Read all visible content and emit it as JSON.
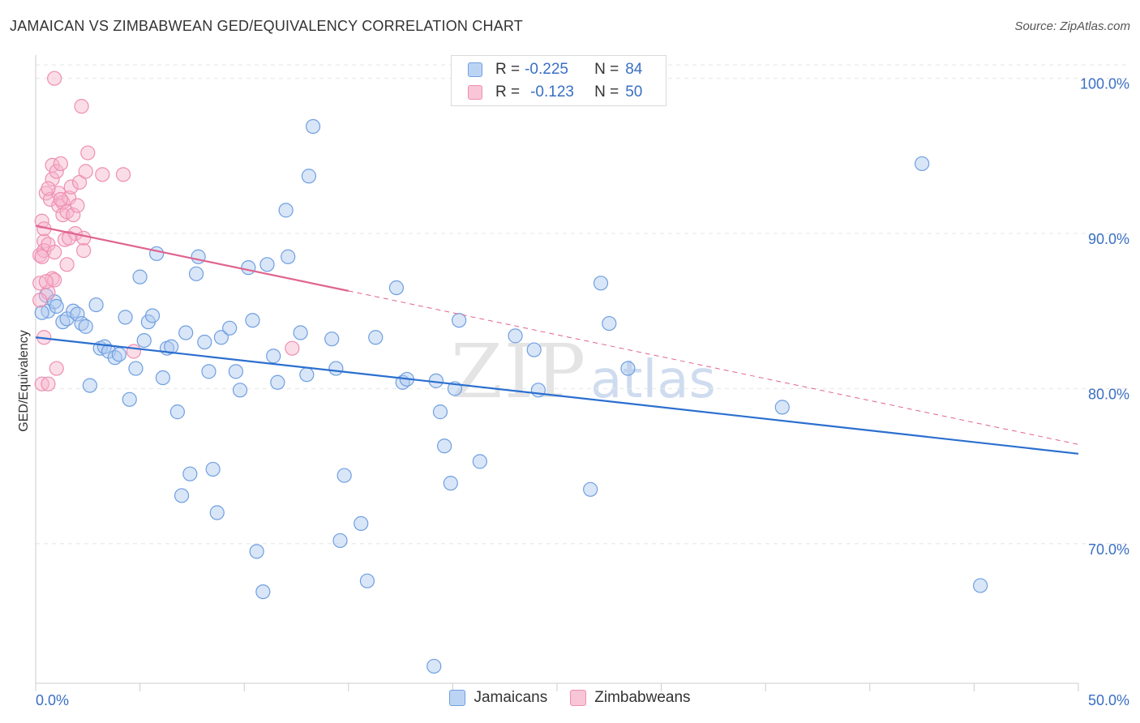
{
  "header": {
    "title": "JAMAICAN VS ZIMBABWEAN GED/EQUIVALENCY CORRELATION CHART",
    "source": "Source: ZipAtlas.com"
  },
  "watermark": {
    "zip": "ZIP",
    "atlas": "atlas"
  },
  "legend": {
    "rows": [
      {
        "r_label": "R =",
        "r_value": "-0.225",
        "n_label": "N =",
        "n_value": "84"
      },
      {
        "r_label": "R =",
        "r_value": "-0.123",
        "n_label": "N =",
        "n_value": "50"
      }
    ]
  },
  "chart_data": {
    "type": "scatter",
    "title": "JAMAICAN VS ZIMBABWEAN GED/EQUIVALENCY CORRELATION CHART",
    "xlabel": "",
    "ylabel": "GED/Equivalency",
    "xlim": [
      0,
      50
    ],
    "ylim": [
      61.0,
      101.5
    ],
    "x_tick_labels": [
      "0.0%",
      "50.0%"
    ],
    "y_ticks": [
      70,
      80,
      90,
      100
    ],
    "y_tick_labels": [
      "70.0%",
      "80.0%",
      "90.0%",
      "100.0%"
    ],
    "grid": "horizontal dashed",
    "legend_position": "top-center",
    "colors": {
      "blue": "#6f9fe0",
      "blue_line": "#2b6fcf",
      "pink": "#ee8fb0",
      "pink_line": "#e0648f",
      "tick_label": "#3a6fc4"
    },
    "series": [
      {
        "name": "Jamaicans",
        "trend": {
          "x": [
            0,
            50
          ],
          "y": [
            83.3,
            75.8
          ],
          "style": "solid"
        },
        "points": [
          [
            0.5,
            86.0
          ],
          [
            0.6,
            85.0
          ],
          [
            0.9,
            85.6
          ],
          [
            1.0,
            85.3
          ],
          [
            1.3,
            84.3
          ],
          [
            1.5,
            84.5
          ],
          [
            1.8,
            85.0
          ],
          [
            2.0,
            84.8
          ],
          [
            2.2,
            84.2
          ],
          [
            2.4,
            84.0
          ],
          [
            2.6,
            80.2
          ],
          [
            2.9,
            85.4
          ],
          [
            3.1,
            82.6
          ],
          [
            3.3,
            82.7
          ],
          [
            3.5,
            82.4
          ],
          [
            3.8,
            82.0
          ],
          [
            4.0,
            82.2
          ],
          [
            4.3,
            84.6
          ],
          [
            4.5,
            79.3
          ],
          [
            4.8,
            81.3
          ],
          [
            5.0,
            87.2
          ],
          [
            5.2,
            83.1
          ],
          [
            5.4,
            84.3
          ],
          [
            5.6,
            84.7
          ],
          [
            5.8,
            88.7
          ],
          [
            6.1,
            80.7
          ],
          [
            6.3,
            82.6
          ],
          [
            6.5,
            82.7
          ],
          [
            6.8,
            78.5
          ],
          [
            7.0,
            73.1
          ],
          [
            7.2,
            83.6
          ],
          [
            7.4,
            74.5
          ],
          [
            7.7,
            87.4
          ],
          [
            7.8,
            88.5
          ],
          [
            8.1,
            83.0
          ],
          [
            8.3,
            81.1
          ],
          [
            8.5,
            74.8
          ],
          [
            8.7,
            72.0
          ],
          [
            8.9,
            83.3
          ],
          [
            9.3,
            83.9
          ],
          [
            9.6,
            81.1
          ],
          [
            9.8,
            79.9
          ],
          [
            10.2,
            87.8
          ],
          [
            10.4,
            84.4
          ],
          [
            10.6,
            69.5
          ],
          [
            10.9,
            66.9
          ],
          [
            11.1,
            88.0
          ],
          [
            11.4,
            82.1
          ],
          [
            11.6,
            80.4
          ],
          [
            12.0,
            91.5
          ],
          [
            12.1,
            88.5
          ],
          [
            12.7,
            83.6
          ],
          [
            13.0,
            80.9
          ],
          [
            13.1,
            93.7
          ],
          [
            13.3,
            96.9
          ],
          [
            14.2,
            83.2
          ],
          [
            14.4,
            81.3
          ],
          [
            14.6,
            70.2
          ],
          [
            14.8,
            74.4
          ],
          [
            15.6,
            71.3
          ],
          [
            15.9,
            67.6
          ],
          [
            16.3,
            83.3
          ],
          [
            17.3,
            86.5
          ],
          [
            17.6,
            80.4
          ],
          [
            17.8,
            80.6
          ],
          [
            19.1,
            62.1
          ],
          [
            19.2,
            80.5
          ],
          [
            19.4,
            78.5
          ],
          [
            19.6,
            76.3
          ],
          [
            19.9,
            73.9
          ],
          [
            20.1,
            80.0
          ],
          [
            20.3,
            84.4
          ],
          [
            21.3,
            75.3
          ],
          [
            23.0,
            83.4
          ],
          [
            23.9,
            82.5
          ],
          [
            24.1,
            79.9
          ],
          [
            26.6,
            73.5
          ],
          [
            27.1,
            86.8
          ],
          [
            27.5,
            84.2
          ],
          [
            28.4,
            81.3
          ],
          [
            35.8,
            78.8
          ],
          [
            42.5,
            94.5
          ],
          [
            45.3,
            67.3
          ],
          [
            0.3,
            84.9
          ]
        ]
      },
      {
        "name": "Zimbabweans",
        "trend": {
          "x": [
            0,
            15
          ],
          "y": [
            90.5,
            86.3
          ],
          "style": "solid",
          "extension": {
            "x": [
              15,
              50
            ],
            "y": [
              86.3,
              76.4
            ],
            "style": "dashed"
          }
        },
        "points": [
          [
            0.2,
            86.8
          ],
          [
            0.2,
            88.6
          ],
          [
            0.3,
            90.8
          ],
          [
            0.3,
            80.3
          ],
          [
            0.4,
            89.5
          ],
          [
            0.4,
            83.3
          ],
          [
            0.4,
            88.9
          ],
          [
            0.5,
            92.6
          ],
          [
            0.6,
            86.2
          ],
          [
            0.6,
            89.3
          ],
          [
            0.6,
            80.3
          ],
          [
            0.7,
            92.2
          ],
          [
            0.8,
            94.4
          ],
          [
            0.8,
            87.1
          ],
          [
            0.8,
            93.5
          ],
          [
            0.9,
            100.0
          ],
          [
            0.9,
            87.0
          ],
          [
            1.0,
            81.3
          ],
          [
            1.0,
            94.0
          ],
          [
            1.1,
            92.6
          ],
          [
            1.1,
            91.8
          ],
          [
            1.2,
            94.5
          ],
          [
            1.3,
            92.0
          ],
          [
            1.3,
            91.2
          ],
          [
            1.4,
            89.6
          ],
          [
            1.5,
            91.4
          ],
          [
            1.5,
            88.0
          ],
          [
            1.6,
            92.3
          ],
          [
            1.7,
            93.0
          ],
          [
            1.8,
            91.2
          ],
          [
            1.9,
            90.0
          ],
          [
            2.0,
            91.8
          ],
          [
            2.1,
            93.3
          ],
          [
            2.2,
            98.2
          ],
          [
            2.3,
            89.7
          ],
          [
            2.3,
            88.9
          ],
          [
            2.4,
            94.0
          ],
          [
            2.5,
            95.2
          ],
          [
            0.4,
            90.3
          ],
          [
            0.3,
            88.5
          ],
          [
            3.2,
            93.8
          ],
          [
            4.2,
            93.8
          ],
          [
            0.5,
            86.9
          ],
          [
            0.6,
            92.9
          ],
          [
            1.2,
            92.2
          ],
          [
            0.9,
            88.8
          ],
          [
            12.3,
            82.6
          ],
          [
            4.7,
            82.4
          ],
          [
            0.2,
            85.7
          ],
          [
            1.6,
            89.7
          ]
        ]
      }
    ]
  }
}
